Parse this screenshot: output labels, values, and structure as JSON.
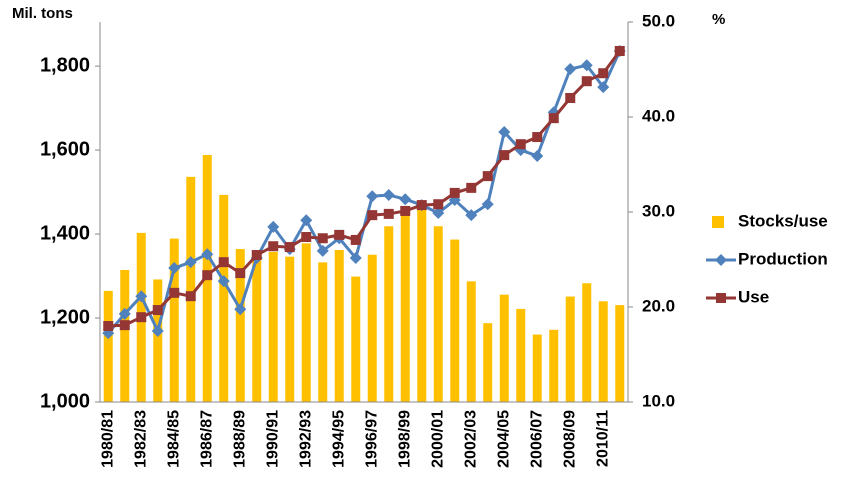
{
  "chart_data": {
    "type": "combo",
    "y_label": "Mil. tons",
    "y2_label": "%",
    "categories": [
      "1980/81",
      null,
      "1982/83",
      null,
      "1984/85",
      null,
      "1986/87",
      null,
      "1988/89",
      null,
      "1990/91",
      null,
      "1992/93",
      null,
      "1994/95",
      null,
      "1996/97",
      null,
      "1998/99",
      null,
      "2000/01",
      null,
      "2002/03",
      null,
      "2004/05",
      null,
      "2006/07",
      null,
      "2008/09",
      null,
      "2010/11",
      null
    ],
    "ylim": [
      1000,
      1905
    ],
    "yticks": [
      {
        "value": 1000,
        "label": "1,000"
      },
      {
        "value": 1200,
        "label": "1,200"
      },
      {
        "value": 1400,
        "label": "1,400"
      },
      {
        "value": 1600,
        "label": "1,600"
      },
      {
        "value": 1800,
        "label": "1,800"
      }
    ],
    "y2lim": [
      10,
      50
    ],
    "y2ticks": [
      {
        "value": 10,
        "label": "10.0"
      },
      {
        "value": 20,
        "label": "20.0"
      },
      {
        "value": 30,
        "label": "30.0"
      },
      {
        "value": 40,
        "label": "40.0"
      },
      {
        "value": 50,
        "label": "50.0"
      }
    ],
    "series": [
      {
        "name": "Stocks/use",
        "type": "bar",
        "axis": "y2",
        "color": "#FFC000",
        "values": [
          21.7,
          23.9,
          27.8,
          22.9,
          27.2,
          33.7,
          36.0,
          31.8,
          26.1,
          24.9,
          25.8,
          25.3,
          26.7,
          24.7,
          26.0,
          23.2,
          25.5,
          28.5,
          29.7,
          30.7,
          28.5,
          27.1,
          22.7,
          18.3,
          21.3,
          19.8,
          17.1,
          17.6,
          21.1,
          22.5,
          20.6,
          20.2
        ]
      },
      {
        "name": "Production",
        "type": "line",
        "marker": "diamond",
        "color": "#4F81BD",
        "values": [
          1164,
          1210,
          1252,
          1169,
          1319,
          1333,
          1352,
          1288,
          1221,
          1343,
          1417,
          1364,
          1433,
          1360,
          1390,
          1343,
          1490,
          1493,
          1483,
          1469,
          1450,
          1481,
          1445,
          1471,
          1643,
          1600,
          1586,
          1690,
          1793,
          1802,
          1750,
          1836
        ]
      },
      {
        "name": "Use",
        "type": "line",
        "marker": "square",
        "color": "#943634",
        "values": [
          1181,
          1183,
          1202,
          1219,
          1260,
          1252,
          1302,
          1333,
          1307,
          1350,
          1371,
          1369,
          1393,
          1390,
          1398,
          1386,
          1445,
          1448,
          1455,
          1469,
          1471,
          1498,
          1510,
          1538,
          1588,
          1614,
          1631,
          1676,
          1724,
          1764,
          1783,
          1836
        ]
      }
    ]
  }
}
